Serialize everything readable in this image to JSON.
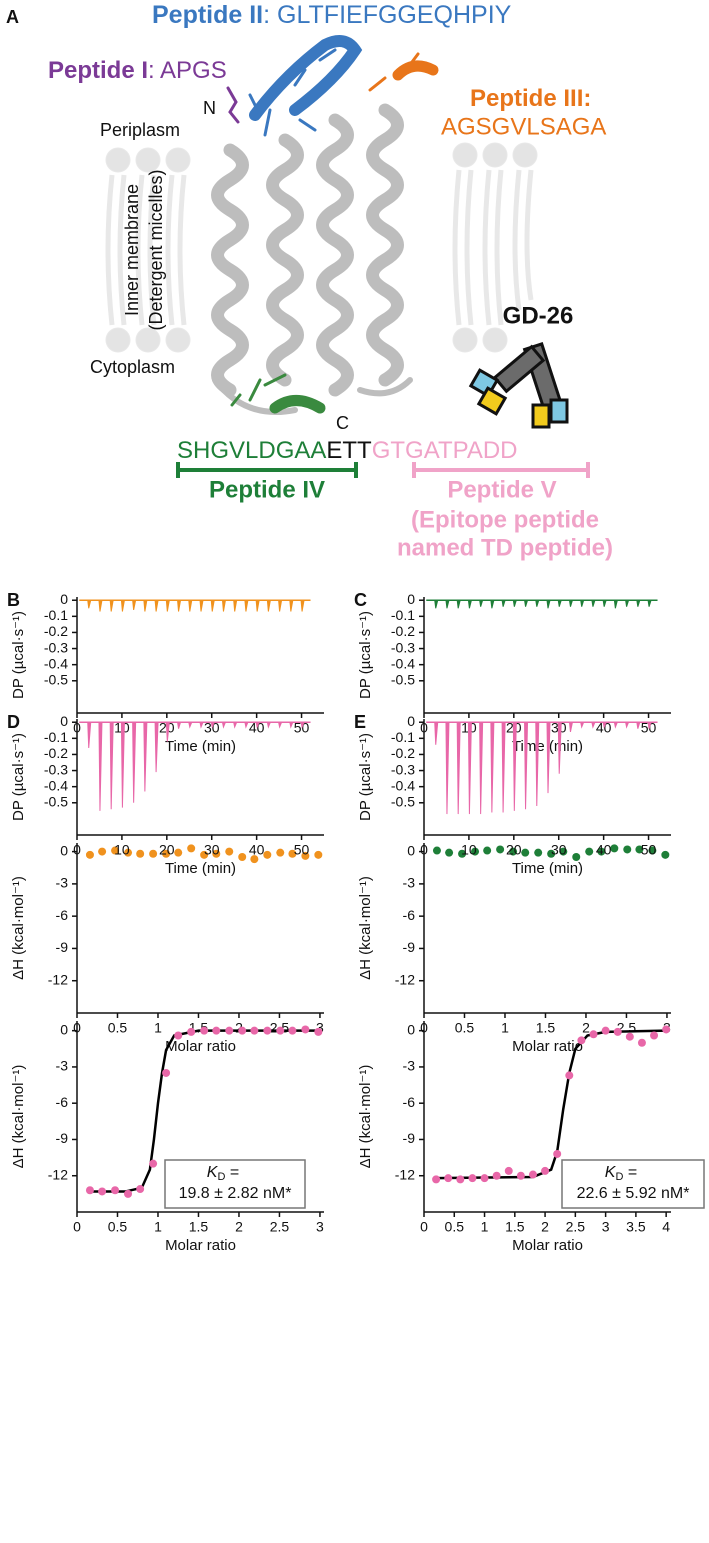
{
  "panel_a": {
    "label": "A",
    "peptide_ii": {
      "name": "Peptide II",
      "rest": ": GLTFIEFGGEQHPIY"
    },
    "peptide_i": {
      "name": "Peptide I",
      "rest": ": APGS"
    },
    "peptide_iii": {
      "name": "Peptide III",
      "colon": ":",
      "seq": "AGSGVLSAGA"
    },
    "n_term": "N",
    "c_term": "C",
    "periplasm": "Periplasm",
    "membrane": "Inner membrane",
    "micelles": "(Detergent micelles)",
    "cytoplasm": "Cytoplasm",
    "antibody": "GD-26",
    "seq_iv": "SHGVLDGAA",
    "seq_mid": "ETT",
    "seq_v": "GTGATPADD",
    "peptide_iv": "Peptide IV",
    "peptide_v": [
      "Peptide V",
      "(Epitope peptide",
      "named TD peptide)"
    ]
  },
  "chart_data": [
    {
      "type": "spike",
      "panel": "B",
      "xlabel": "Time (min)",
      "ylabel": "DP (µcal·s⁻¹)",
      "color": "#f0921e",
      "x": [
        2.5,
        5,
        7.5,
        10,
        12.5,
        15,
        17.5,
        20,
        22.5,
        25,
        27.5,
        30,
        32.5,
        35,
        37.5,
        40,
        42.5,
        45,
        47.5,
        50
      ],
      "values": [
        -0.05,
        -0.07,
        -0.07,
        -0.07,
        -0.06,
        -0.07,
        -0.07,
        -0.07,
        -0.07,
        -0.07,
        -0.07,
        -0.07,
        -0.07,
        -0.07,
        -0.07,
        -0.07,
        -0.07,
        -0.07,
        -0.07,
        -0.07
      ],
      "xlim": [
        0,
        55
      ],
      "xticks": [
        0,
        10,
        20,
        30,
        40,
        50
      ],
      "ylim": [
        -0.7,
        0.02
      ],
      "yticks": [
        0,
        -0.1,
        -0.2,
        -0.3,
        -0.4,
        -0.5
      ]
    },
    {
      "type": "spike",
      "panel": "C",
      "xlabel": "Time (min)",
      "ylabel": "DP (µcal·s⁻¹)",
      "color": "#1e7f38",
      "x": [
        2.5,
        5,
        7.5,
        10,
        12.5,
        15,
        17.5,
        20,
        22.5,
        25,
        27.5,
        30,
        32.5,
        35,
        37.5,
        40,
        42.5,
        45,
        47.5,
        50
      ],
      "values": [
        -0.05,
        -0.05,
        -0.05,
        -0.05,
        -0.04,
        -0.05,
        -0.04,
        -0.04,
        -0.04,
        -0.04,
        -0.05,
        -0.04,
        -0.04,
        -0.04,
        -0.04,
        -0.04,
        -0.05,
        -0.04,
        -0.04,
        -0.04
      ],
      "xlim": [
        0,
        55
      ],
      "xticks": [
        0,
        10,
        20,
        30,
        40,
        50
      ],
      "ylim": [
        -0.7,
        0.02
      ],
      "yticks": [
        0,
        -0.1,
        -0.2,
        -0.3,
        -0.4,
        -0.5
      ]
    },
    {
      "type": "scatter",
      "xlabel": "Molar ratio",
      "ylabel": "ΔH (kcal·mol⁻¹)",
      "color": "#f0921e",
      "x": [
        0.16,
        0.31,
        0.47,
        0.63,
        0.78,
        0.94,
        1.1,
        1.25,
        1.41,
        1.57,
        1.72,
        1.88,
        2.04,
        2.19,
        2.35,
        2.51,
        2.66,
        2.82,
        2.98
      ],
      "values": [
        -0.3,
        0,
        0.1,
        -0.1,
        -0.2,
        -0.2,
        -0.2,
        -0.1,
        0.3,
        -0.3,
        -0.2,
        0,
        -0.5,
        -0.7,
        -0.3,
        -0.1,
        -0.2,
        -0.4,
        -0.3
      ],
      "xlim": [
        0,
        3.05
      ],
      "xticks": [
        0,
        0.5,
        1,
        1.5,
        2,
        2.5,
        3
      ],
      "ylim": [
        -15,
        0.8
      ],
      "yticks": [
        0,
        -3,
        -6,
        -9,
        -12
      ]
    },
    {
      "type": "scatter",
      "xlabel": "Molar ratio",
      "ylabel": "ΔH (kcal·mol⁻¹)",
      "color": "#1e7f38",
      "x": [
        0.16,
        0.31,
        0.47,
        0.63,
        0.78,
        0.94,
        1.1,
        1.25,
        1.41,
        1.57,
        1.72,
        1.88,
        2.04,
        2.19,
        2.35,
        2.51,
        2.66,
        2.82,
        2.98
      ],
      "values": [
        0.1,
        -0.1,
        -0.2,
        0,
        0.1,
        0.2,
        0,
        -0.1,
        -0.1,
        -0.2,
        0,
        -0.5,
        0,
        0,
        0.3,
        0.2,
        0.2,
        0.1,
        -0.3
      ],
      "xlim": [
        0,
        3.05
      ],
      "xticks": [
        0,
        0.5,
        1,
        1.5,
        2,
        2.5,
        3
      ],
      "ylim": [
        -15,
        0.8
      ],
      "yticks": [
        0,
        -3,
        -6,
        -9,
        -12
      ]
    },
    {
      "type": "spike",
      "panel": "D",
      "xlabel": "Time (min)",
      "ylabel": "DP (µcal·s⁻¹)",
      "color": "#e867a8",
      "x": [
        2.5,
        5,
        7.5,
        10,
        12.5,
        15,
        17.5,
        20,
        22.5,
        25,
        27.5,
        30,
        32.5,
        35,
        37.5,
        40,
        42.5,
        45,
        47.5,
        50
      ],
      "values": [
        -0.16,
        -0.55,
        -0.54,
        -0.53,
        -0.5,
        -0.43,
        -0.31,
        -0.12,
        -0.04,
        -0.03,
        -0.03,
        -0.03,
        -0.03,
        -0.03,
        -0.03,
        -0.03,
        -0.03,
        -0.03,
        -0.03,
        -0.03
      ],
      "xlim": [
        0,
        55
      ],
      "xticks": [
        0,
        10,
        20,
        30,
        40,
        50
      ],
      "ylim": [
        -0.7,
        0.02
      ],
      "yticks": [
        0,
        -0.1,
        -0.2,
        -0.3,
        -0.4,
        -0.5
      ]
    },
    {
      "type": "spike",
      "panel": "E",
      "xlabel": "Time (min)",
      "ylabel": "DP (µcal·s⁻¹)",
      "color": "#e867a8",
      "x": [
        2.5,
        5,
        7.5,
        10,
        12.5,
        15,
        17.5,
        20,
        22.5,
        25,
        27.5,
        30,
        32.5,
        35,
        37.5,
        40,
        42.5,
        45,
        47.5,
        50
      ],
      "values": [
        -0.14,
        -0.57,
        -0.57,
        -0.57,
        -0.57,
        -0.56,
        -0.56,
        -0.55,
        -0.54,
        -0.52,
        -0.44,
        -0.32,
        -0.06,
        -0.03,
        -0.03,
        -0.03,
        -0.03,
        -0.03,
        -0.04,
        -0.04
      ],
      "xlim": [
        0,
        55
      ],
      "xticks": [
        0,
        10,
        20,
        30,
        40,
        50
      ],
      "ylim": [
        -0.7,
        0.02
      ],
      "yticks": [
        0,
        -0.1,
        -0.2,
        -0.3,
        -0.4,
        -0.5
      ]
    },
    {
      "type": "scatter",
      "xlabel": "Molar ratio",
      "ylabel": "ΔH (kcal·mol⁻¹)",
      "color": "#e867a8",
      "x": [
        0.16,
        0.31,
        0.47,
        0.63,
        0.78,
        0.94,
        1.1,
        1.25,
        1.41,
        1.57,
        1.72,
        1.88,
        2.04,
        2.19,
        2.35,
        2.51,
        2.66,
        2.82,
        2.98
      ],
      "values": [
        -13.2,
        -13.3,
        -13.2,
        -13.5,
        -13.1,
        -11.0,
        -3.5,
        -0.4,
        -0.1,
        0,
        0,
        0,
        0,
        0,
        0,
        0,
        0,
        0.1,
        -0.1
      ],
      "fit": {
        "color": "#000000",
        "x": [
          0.16,
          0.6,
          0.8,
          0.9,
          0.95,
          1.0,
          1.05,
          1.1,
          1.2,
          1.5,
          2,
          3
        ],
        "values": [
          -13.3,
          -13.3,
          -13.0,
          -11.5,
          -9.0,
          -6.0,
          -3.5,
          -1.6,
          -0.4,
          0,
          0,
          0
        ]
      },
      "kd": {
        "symbol": "K",
        "sub": "D",
        "eq": " =",
        "value": "19.8 ± 2.82 nM*"
      },
      "xlim": [
        0,
        3.05
      ],
      "xticks": [
        0,
        0.5,
        1,
        1.5,
        2,
        2.5,
        3
      ],
      "ylim": [
        -15,
        0.8
      ],
      "yticks": [
        0,
        -3,
        -6,
        -9,
        -12
      ]
    },
    {
      "type": "scatter",
      "xlabel": "Molar ratio",
      "ylabel": "ΔH (kcal·mol⁻¹)",
      "color": "#e867a8",
      "x": [
        0.2,
        0.4,
        0.6,
        0.8,
        1.0,
        1.2,
        1.4,
        1.6,
        1.8,
        2.0,
        2.2,
        2.4,
        2.6,
        2.8,
        3.0,
        3.2,
        3.4,
        3.6,
        3.8,
        4.0
      ],
      "values": [
        -12.3,
        -12.2,
        -12.3,
        -12.2,
        -12.2,
        -12.0,
        -11.6,
        -12.0,
        -11.9,
        -11.6,
        -10.2,
        -3.7,
        -0.8,
        -0.3,
        0,
        -0.1,
        -0.5,
        -1.0,
        -0.4,
        0.1
      ],
      "fit": {
        "color": "#000000",
        "x": [
          0.2,
          1.8,
          2.1,
          2.2,
          2.3,
          2.4,
          2.5,
          2.7,
          3,
          4
        ],
        "values": [
          -12.2,
          -12.1,
          -11.5,
          -10.0,
          -6.5,
          -3.5,
          -1.5,
          -0.4,
          -0.1,
          0
        ]
      },
      "kd": {
        "symbol": "K",
        "sub": "D",
        "eq": " =",
        "value": "22.6 ± 5.92 nM*"
      },
      "xlim": [
        0,
        4.08
      ],
      "xticks": [
        0,
        0.5,
        1,
        1.5,
        2,
        2.5,
        3,
        3.5,
        4
      ],
      "ylim": [
        -15,
        0.8
      ],
      "yticks": [
        0,
        -3,
        -6,
        -9,
        -12
      ]
    }
  ]
}
